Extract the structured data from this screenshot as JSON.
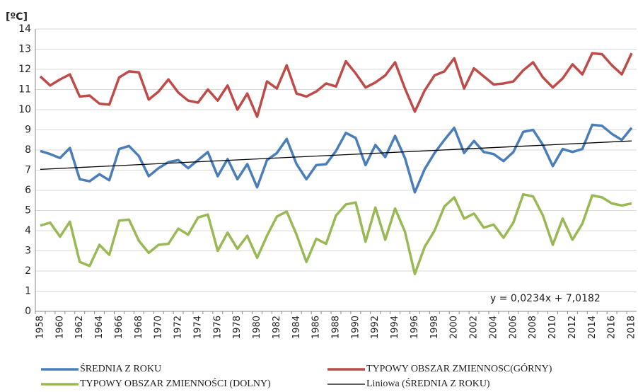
{
  "chart_data": {
    "type": "line",
    "y_label": "[ºC]",
    "categories": [
      1958,
      null,
      1960,
      null,
      1962,
      null,
      1964,
      null,
      1966,
      null,
      1968,
      null,
      1970,
      null,
      1972,
      null,
      1974,
      null,
      1976,
      null,
      1978,
      null,
      1980,
      null,
      1982,
      null,
      1984,
      null,
      1986,
      null,
      1988,
      null,
      1990,
      null,
      1992,
      null,
      1994,
      null,
      1996,
      null,
      1998,
      null,
      2000,
      null,
      2002,
      null,
      2004,
      null,
      2006,
      null,
      2008,
      null,
      2010,
      null,
      2012,
      null,
      2014,
      null,
      2016,
      null,
      2018
    ],
    "series": [
      {
        "name": "ŚREDNIA Z ROKU",
        "color": "#4a7ebb",
        "values": [
          7.95,
          7.8,
          7.6,
          8.1,
          6.55,
          6.45,
          6.8,
          6.5,
          8.05,
          8.2,
          7.7,
          6.7,
          7.1,
          7.4,
          7.5,
          7.1,
          7.5,
          7.9,
          6.7,
          7.55,
          6.55,
          7.3,
          6.15,
          7.5,
          7.85,
          8.55,
          7.3,
          6.55,
          7.25,
          7.3,
          7.95,
          8.85,
          8.6,
          7.25,
          8.25,
          7.65,
          8.7,
          7.6,
          5.9,
          7.05,
          7.85,
          8.5,
          9.1,
          7.85,
          8.45,
          7.9,
          7.8,
          7.45,
          7.9,
          8.9,
          9.0,
          8.25,
          7.2,
          8.05,
          7.9,
          8.05,
          9.25,
          9.2,
          8.8,
          8.5,
          9.1
        ]
      },
      {
        "name": "TYPOWY OBSZAR ZMIENNOSC(GÓRNY)",
        "color": "#be4b48",
        "values": [
          11.65,
          11.2,
          11.5,
          11.75,
          10.65,
          10.7,
          10.3,
          10.25,
          11.6,
          11.9,
          11.85,
          10.5,
          10.9,
          11.5,
          10.85,
          10.45,
          10.35,
          11.0,
          10.45,
          11.2,
          10.0,
          10.8,
          9.65,
          11.4,
          11.05,
          12.2,
          10.8,
          10.65,
          10.9,
          11.3,
          11.15,
          12.4,
          11.8,
          11.1,
          11.35,
          11.7,
          12.35,
          11.05,
          9.9,
          10.95,
          11.7,
          11.9,
          12.55,
          11.05,
          12.05,
          11.65,
          11.25,
          11.3,
          11.4,
          11.95,
          12.35,
          11.6,
          11.1,
          11.55,
          12.25,
          11.75,
          12.8,
          12.75,
          12.2,
          11.75,
          12.8
        ]
      },
      {
        "name": "TYPOWY OBSZAR ZMIENNOŚCI (DOLNY)",
        "color": "#98b954",
        "values": [
          4.25,
          4.4,
          3.7,
          4.45,
          2.45,
          2.25,
          3.3,
          2.8,
          4.5,
          4.55,
          3.5,
          2.9,
          3.3,
          3.35,
          4.1,
          3.8,
          4.65,
          4.8,
          3.0,
          3.9,
          3.1,
          3.75,
          2.65,
          3.75,
          4.7,
          4.95,
          3.8,
          2.45,
          3.6,
          3.35,
          4.75,
          5.3,
          5.4,
          3.45,
          5.15,
          3.55,
          5.1,
          3.95,
          1.85,
          3.2,
          4.0,
          5.2,
          5.65,
          4.6,
          4.85,
          4.15,
          4.3,
          3.65,
          4.4,
          5.8,
          5.7,
          4.75,
          3.3,
          4.6,
          3.55,
          4.35,
          5.75,
          5.65,
          5.35,
          5.25,
          5.35
        ]
      }
    ],
    "trendline": {
      "name": "Liniowa (ŚREDNIA Z ROKU)",
      "color": "#000000",
      "x": [
        1958,
        2018
      ],
      "values": [
        7.04,
        8.45
      ],
      "equation": "y = 0,0234x + 7,0182"
    },
    "ylim": [
      0,
      14
    ],
    "yticks": [
      0,
      1,
      2,
      3,
      4,
      5,
      6,
      7,
      8,
      9,
      10,
      11,
      12,
      13,
      14
    ],
    "grid": true
  }
}
